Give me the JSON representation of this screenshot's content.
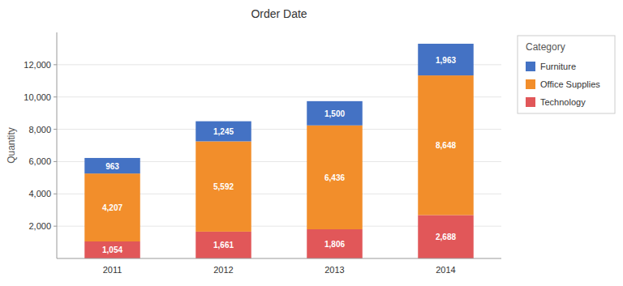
{
  "chart_data": {
    "type": "bar",
    "title": "Order Date",
    "ylabel": "Quantity",
    "legend_title": "Category",
    "categories": [
      "2011",
      "2012",
      "2013",
      "2014"
    ],
    "series": [
      {
        "name": "Technology",
        "color": "#E15759",
        "values": [
          1054,
          1661,
          1806,
          2688
        ],
        "value_labels": [
          "1,054",
          "1,661",
          "1,806",
          "2,688"
        ]
      },
      {
        "name": "Office Supplies",
        "color": "#F28E2B",
        "values": [
          4207,
          5592,
          6436,
          8648
        ],
        "value_labels": [
          "4,207",
          "5,592",
          "6,436",
          "8,648"
        ]
      },
      {
        "name": "Furniture",
        "color": "#4472C4",
        "values": [
          963,
          1245,
          1500,
          1963
        ],
        "value_labels": [
          "963",
          "1,245",
          "1,500",
          "1,963"
        ]
      }
    ],
    "ylim": [
      0,
      14000
    ],
    "yticks": [
      {
        "value": 2000,
        "label": "2,000"
      },
      {
        "value": 4000,
        "label": "4,000"
      },
      {
        "value": 6000,
        "label": "6,000"
      },
      {
        "value": 8000,
        "label": "8,000"
      },
      {
        "value": 10000,
        "label": "10,000"
      },
      {
        "value": 12000,
        "label": "12,000"
      }
    ],
    "stacked": true,
    "grid": true,
    "legend": "right",
    "data_labels": true
  }
}
